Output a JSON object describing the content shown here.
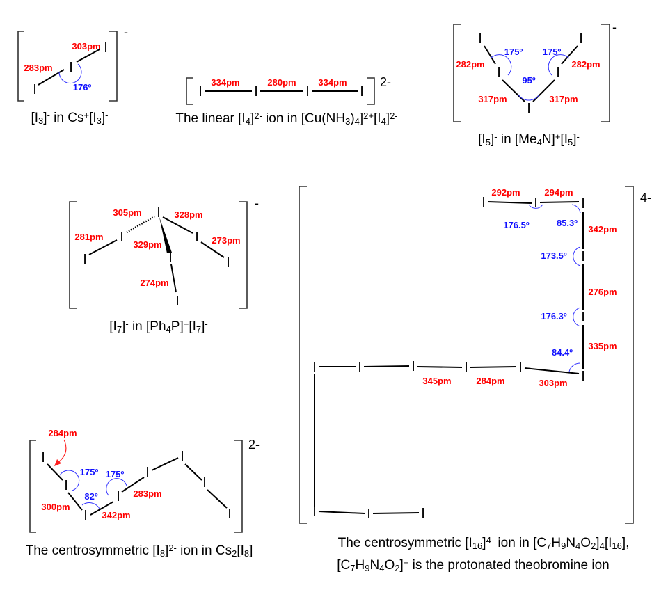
{
  "atom_symbol": "I",
  "colors": {
    "bond_length": "#ff0000",
    "bond_angle": "#1010ff",
    "bond": "#000000"
  },
  "i3": {
    "charge": "-",
    "lengths": [
      "283pm",
      "303pm"
    ],
    "angles": [
      "176º"
    ],
    "caption": [
      {
        "t": "[I"
      },
      {
        "t": "3",
        "s": "sub"
      },
      {
        "t": "]"
      },
      {
        "t": "-",
        "s": "sup"
      },
      {
        "t": " in Cs"
      },
      {
        "t": "+",
        "s": "sup"
      },
      {
        "t": "[I"
      },
      {
        "t": "3",
        "s": "sub"
      },
      {
        "t": "]"
      },
      {
        "t": "-",
        "s": "sup"
      }
    ]
  },
  "i4": {
    "charge": "2-",
    "lengths": [
      "334pm",
      "280pm",
      "334pm"
    ],
    "caption": [
      {
        "t": "The linear [I"
      },
      {
        "t": "4",
        "s": "sub"
      },
      {
        "t": "]"
      },
      {
        "t": "2-",
        "s": "sup"
      },
      {
        "t": " ion in [Cu(NH"
      },
      {
        "t": "3",
        "s": "sub"
      },
      {
        "t": ")"
      },
      {
        "t": "4",
        "s": "sub"
      },
      {
        "t": "]"
      },
      {
        "t": "2+",
        "s": "sup"
      },
      {
        "t": "[I"
      },
      {
        "t": "4",
        "s": "sub"
      },
      {
        "t": "]"
      },
      {
        "t": "2-",
        "s": "sup"
      }
    ]
  },
  "i5": {
    "charge": "-",
    "lengths": [
      "282pm",
      "282pm",
      "317pm",
      "317pm"
    ],
    "angles": [
      "175º",
      "175º",
      "95º"
    ],
    "caption": [
      {
        "t": "[I"
      },
      {
        "t": "5",
        "s": "sub"
      },
      {
        "t": "]"
      },
      {
        "t": "-",
        "s": "sup"
      },
      {
        "t": " in [Me"
      },
      {
        "t": "4",
        "s": "sub"
      },
      {
        "t": "N]"
      },
      {
        "t": "+",
        "s": "sup"
      },
      {
        "t": "[I"
      },
      {
        "t": "5",
        "s": "sub"
      },
      {
        "t": "]"
      },
      {
        "t": "-",
        "s": "sup"
      }
    ]
  },
  "i7": {
    "charge": "-",
    "lengths": [
      "305pm",
      "328pm",
      "281pm",
      "273pm",
      "329pm",
      "274pm"
    ],
    "caption": [
      {
        "t": "[I"
      },
      {
        "t": "7",
        "s": "sub"
      },
      {
        "t": "]"
      },
      {
        "t": "-",
        "s": "sup"
      },
      {
        "t": " in [Ph"
      },
      {
        "t": "4",
        "s": "sub"
      },
      {
        "t": "P]"
      },
      {
        "t": "+",
        "s": "sup"
      },
      {
        "t": "[I"
      },
      {
        "t": "7",
        "s": "sub"
      },
      {
        "t": "]"
      },
      {
        "t": "-",
        "s": "sup"
      }
    ]
  },
  "i8": {
    "charge": "2-",
    "lengths": [
      "284pm",
      "300pm",
      "342pm",
      "283pm"
    ],
    "angles": [
      "175º",
      "82º",
      "175º"
    ],
    "caption": [
      {
        "t": "The centrosymmetric [I"
      },
      {
        "t": "8",
        "s": "sub"
      },
      {
        "t": "]"
      },
      {
        "t": "2-",
        "s": "sup"
      },
      {
        "t": " ion in Cs"
      },
      {
        "t": "2",
        "s": "sub"
      },
      {
        "t": "[I"
      },
      {
        "t": "8",
        "s": "sub"
      },
      {
        "t": "]"
      }
    ]
  },
  "i16": {
    "charge": "4-",
    "lengths": [
      "292pm",
      "294pm",
      "342pm",
      "276pm",
      "335pm",
      "345pm",
      "284pm",
      "303pm"
    ],
    "angles": [
      "176.5º",
      "85.3º",
      "173.5º",
      "176.3º",
      "84.4º"
    ],
    "caption_line1": [
      {
        "t": "The centrosymmetric [I"
      },
      {
        "t": "16",
        "s": "sub"
      },
      {
        "t": "]"
      },
      {
        "t": "4-",
        "s": "sup"
      },
      {
        "t": " ion in [C"
      },
      {
        "t": "7",
        "s": "sub"
      },
      {
        "t": "H"
      },
      {
        "t": "9",
        "s": "sub"
      },
      {
        "t": "N"
      },
      {
        "t": "4",
        "s": "sub"
      },
      {
        "t": "O"
      },
      {
        "t": "2",
        "s": "sub"
      },
      {
        "t": "]"
      },
      {
        "t": "4",
        "s": "sub"
      },
      {
        "t": "[I"
      },
      {
        "t": "16",
        "s": "sub"
      },
      {
        "t": "],"
      }
    ],
    "caption_line2": [
      {
        "t": "[C"
      },
      {
        "t": "7",
        "s": "sub"
      },
      {
        "t": "H"
      },
      {
        "t": "9",
        "s": "sub"
      },
      {
        "t": "N"
      },
      {
        "t": "4",
        "s": "sub"
      },
      {
        "t": "O"
      },
      {
        "t": "2",
        "s": "sub"
      },
      {
        "t": "]"
      },
      {
        "t": "+",
        "s": "sup"
      },
      {
        "t": " is the protonated theobromine ion"
      }
    ]
  }
}
